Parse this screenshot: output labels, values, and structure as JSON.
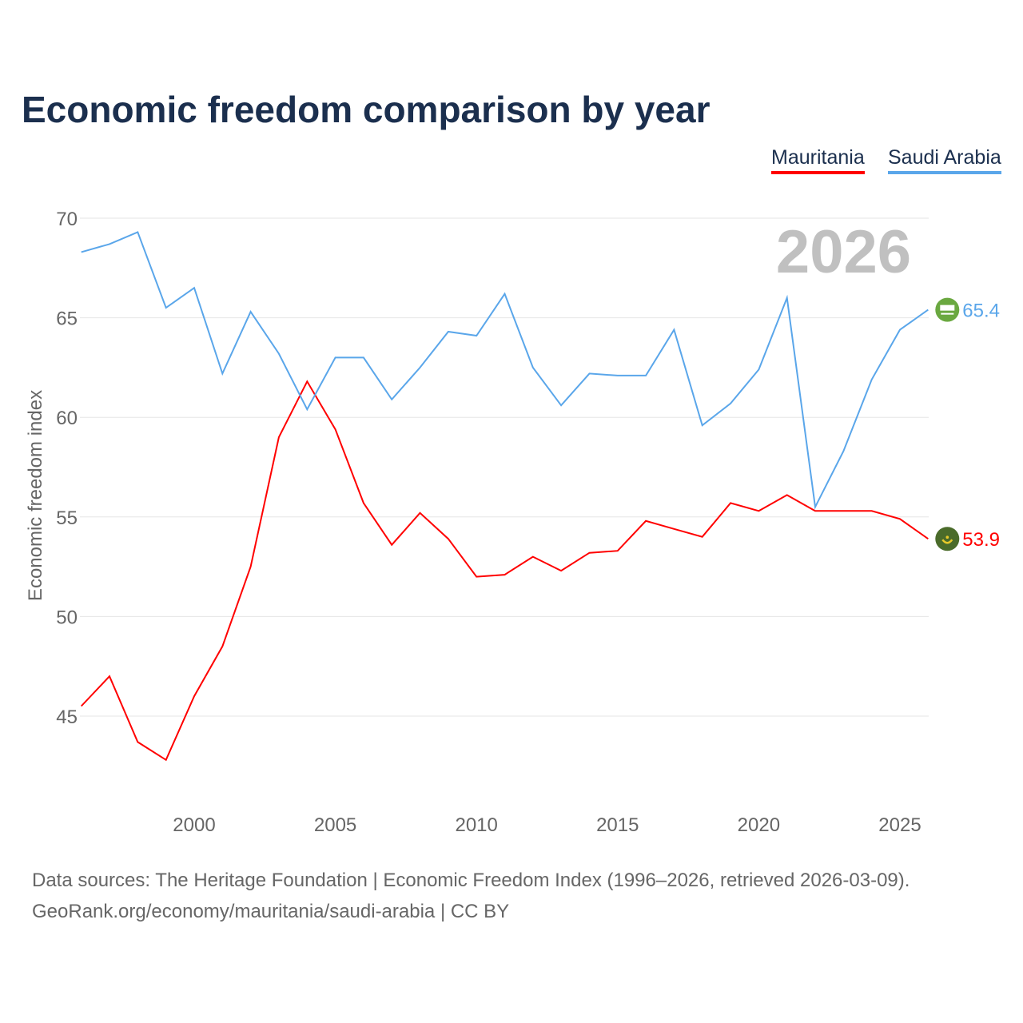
{
  "chart_data": {
    "type": "line",
    "title": "Economic freedom comparison by year",
    "xlabel": "",
    "ylabel": "Economic freedom index",
    "xlim": [
      1996,
      2026
    ],
    "ylim": [
      40,
      72
    ],
    "yticks": [
      45,
      50,
      55,
      60,
      65,
      70
    ],
    "xticks": [
      2000,
      2005,
      2010,
      2015,
      2020,
      2025
    ],
    "grid": true,
    "legend_position": "top-right",
    "year_label": "2026",
    "x": [
      1996,
      1997,
      1998,
      1999,
      2000,
      2001,
      2002,
      2003,
      2004,
      2005,
      2006,
      2007,
      2008,
      2009,
      2010,
      2011,
      2012,
      2013,
      2014,
      2015,
      2016,
      2017,
      2018,
      2019,
      2020,
      2021,
      2022,
      2023,
      2024,
      2025,
      2026
    ],
    "series": [
      {
        "name": "Mauritania",
        "color": "#ff0000",
        "end_label": "53.9",
        "flag": "mauritania-flag",
        "values": [
          45.5,
          47.0,
          43.7,
          42.8,
          46.0,
          48.5,
          52.5,
          59.0,
          61.8,
          59.4,
          55.7,
          53.6,
          55.2,
          53.9,
          52.0,
          52.1,
          53.0,
          52.3,
          53.2,
          53.3,
          54.8,
          54.4,
          54.0,
          55.7,
          55.3,
          56.1,
          55.3,
          55.3,
          55.3,
          54.9,
          53.9
        ]
      },
      {
        "name": "Saudi Arabia",
        "color": "#5aa6ea",
        "end_label": "65.4",
        "flag": "saudi-arabia-flag",
        "values": [
          68.3,
          68.7,
          69.3,
          65.5,
          66.5,
          62.2,
          65.3,
          63.2,
          60.4,
          63.0,
          63.0,
          60.9,
          62.5,
          64.3,
          64.1,
          66.2,
          62.5,
          60.6,
          62.2,
          62.1,
          62.1,
          64.4,
          59.6,
          60.7,
          62.4,
          66.0,
          55.5,
          58.3,
          61.9,
          64.4,
          65.4
        ]
      }
    ]
  },
  "sources": {
    "line1": "Data sources: The Heritage Foundation | Economic Freedom Index (1996–2026, retrieved 2026-03-09).",
    "line2": "GeoRank.org/economy/mauritania/saudi-arabia | CC BY"
  }
}
